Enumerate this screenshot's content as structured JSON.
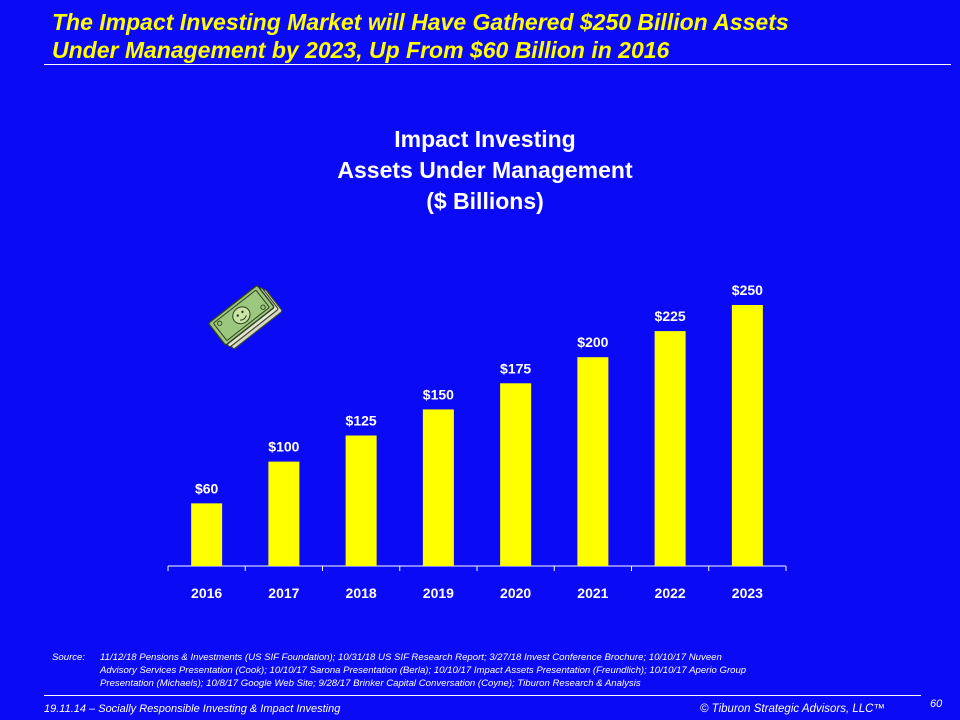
{
  "slide": {
    "headline_line1": "The Impact Investing Market will Have Gathered $250 Billion Assets",
    "headline_line2": "Under Management by 2023, Up From $60 Billion  in 2016",
    "source_label": "Source:",
    "source_line1": "11/12/18 Pensions & Investments (US SIF Foundation); 10/31/18 US SIF Research Report; 3/27/18 Invest Conference Brochure; 10/10/17 Nuveen",
    "source_line2": "Advisory Services Presentation (Cook); 10/10/17 Sarona Presentation (Berla); 10/10/17 Impact Assets Presentation (Freundlich); 10/10/17 Aperio Group",
    "source_line3": "Presentation (Michaels); 10/8/17 Google Web Site; 9/28/17 Brinker Capital Conversation (Coyne); Tiburon Research & Analysis",
    "footer_left": "19.11.14 – Socially Responsible Investing & Impact Investing",
    "footer_right": "© Tiburon Strategic Advisors, LLC™",
    "page_number": "60",
    "money_icon": "money-stack-icon"
  },
  "colors": {
    "background": "#0A0AF5",
    "headline": "#FFFF00",
    "bar": "#FFFF00",
    "text": "#FFFFFF"
  },
  "chart_data": {
    "type": "bar",
    "title_line1": "Impact Investing",
    "title_line2": "Assets Under Management",
    "title_line3": "($ Billions)",
    "categories": [
      "2016",
      "2017",
      "2018",
      "2019",
      "2020",
      "2021",
      "2022",
      "2023"
    ],
    "values": [
      60,
      100,
      125,
      150,
      175,
      200,
      225,
      250
    ],
    "data_labels": [
      "$60",
      "$100",
      "$125",
      "$150",
      "$175",
      "$200",
      "$225",
      "$250"
    ],
    "xlabel": "",
    "ylabel": "",
    "ylim": [
      0,
      250
    ],
    "grid": false,
    "legend": "none"
  }
}
